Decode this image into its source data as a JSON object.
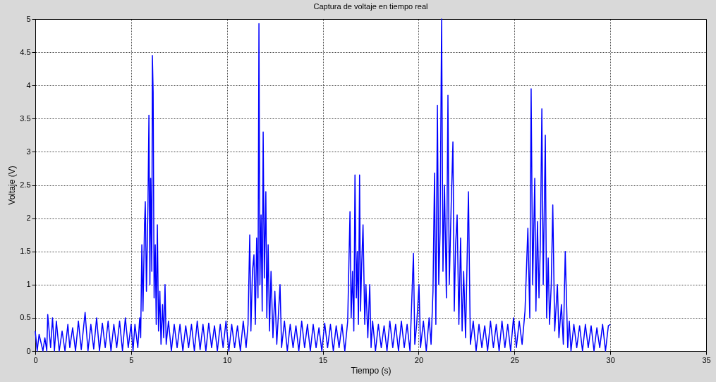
{
  "chart_data": {
    "type": "line",
    "title": "Captura de voltaje en tiempo real",
    "xlabel": "Tiempo (s)",
    "ylabel": "Voltaje (V)",
    "xlim": [
      0,
      35
    ],
    "xticks": [
      0,
      5,
      10,
      15,
      20,
      25,
      30,
      35
    ],
    "ylim": [
      0,
      5
    ],
    "yticks": [
      0,
      0.5,
      1,
      1.5,
      2,
      2.5,
      3,
      3.5,
      4,
      4.5,
      5
    ],
    "grid": true,
    "line_style": "solid",
    "series": [
      {
        "color": "#0000ff",
        "x": [
          0,
          0.1,
          0.2,
          0.4,
          0.5,
          0.6,
          0.65,
          0.8,
          0.9,
          1.0,
          1.1,
          1.25,
          1.4,
          1.55,
          1.7,
          1.8,
          1.95,
          2.1,
          2.25,
          2.4,
          2.6,
          2.75,
          2.9,
          3.05,
          3.2,
          3.35,
          3.5,
          3.65,
          3.8,
          3.95,
          4.1,
          4.25,
          4.4,
          4.55,
          4.7,
          4.85,
          5.0,
          5.1,
          5.2,
          5.35,
          5.45,
          5.5,
          5.56,
          5.62,
          5.7,
          5.74,
          5.8,
          5.88,
          5.93,
          5.98,
          6.02,
          6.08,
          6.11,
          6.15,
          6.2,
          6.26,
          6.31,
          6.37,
          6.43,
          6.5,
          6.56,
          6.64,
          6.7,
          6.77,
          6.83,
          6.95,
          7.1,
          7.25,
          7.4,
          7.55,
          7.7,
          7.85,
          8.0,
          8.15,
          8.3,
          8.45,
          8.6,
          8.75,
          8.9,
          9.05,
          9.2,
          9.35,
          9.5,
          9.65,
          9.8,
          9.95,
          10.1,
          10.25,
          10.4,
          10.55,
          10.7,
          10.85,
          11.0,
          11.1,
          11.19,
          11.25,
          11.33,
          11.41,
          11.48,
          11.55,
          11.62,
          11.67,
          11.72,
          11.78,
          11.84,
          11.89,
          11.95,
          12.03,
          12.08,
          12.15,
          12.22,
          12.3,
          12.4,
          12.5,
          12.6,
          12.77,
          12.85,
          13.0,
          13.15,
          13.3,
          13.45,
          13.6,
          13.75,
          13.9,
          14.05,
          14.2,
          14.35,
          14.5,
          14.65,
          14.8,
          14.95,
          15.1,
          15.25,
          15.4,
          15.55,
          15.7,
          15.85,
          16.0,
          16.15,
          16.3,
          16.42,
          16.48,
          16.55,
          16.62,
          16.68,
          16.75,
          16.8,
          16.86,
          16.92,
          16.97,
          17.03,
          17.1,
          17.19,
          17.25,
          17.35,
          17.45,
          17.52,
          17.6,
          17.75,
          17.9,
          18.05,
          18.2,
          18.35,
          18.5,
          18.65,
          18.8,
          18.95,
          19.1,
          19.25,
          19.4,
          19.55,
          19.73,
          19.8,
          19.9,
          20.02,
          20.1,
          20.25,
          20.4,
          20.55,
          20.65,
          20.75,
          20.83,
          20.9,
          20.98,
          21.05,
          21.12,
          21.2,
          21.27,
          21.35,
          21.45,
          21.53,
          21.6,
          21.7,
          21.79,
          21.86,
          21.93,
          22.01,
          22.1,
          22.19,
          22.27,
          22.35,
          22.45,
          22.6,
          22.7,
          22.85,
          23.0,
          23.15,
          23.3,
          23.45,
          23.6,
          23.75,
          23.9,
          24.05,
          24.2,
          24.35,
          24.5,
          24.65,
          24.8,
          24.95,
          25.1,
          25.25,
          25.4,
          25.55,
          25.7,
          25.8,
          25.87,
          25.95,
          26.06,
          26.12,
          26.2,
          26.28,
          26.35,
          26.43,
          26.5,
          26.61,
          26.68,
          26.76,
          26.83,
          26.92,
          27.0,
          27.1,
          27.24,
          27.32,
          27.45,
          27.55,
          27.65,
          27.78,
          27.86,
          27.95,
          28.1,
          28.25,
          28.4,
          28.55,
          28.7,
          28.85,
          29.0,
          29.15,
          29.3,
          29.45,
          29.6,
          29.75,
          29.9,
          30.0
        ],
        "values": [
          0.3,
          0,
          0.25,
          0,
          0.2,
          0,
          0.55,
          0.05,
          0.5,
          0,
          0.45,
          0,
          0.3,
          0,
          0.4,
          0.05,
          0.35,
          0,
          0.45,
          0.02,
          0.58,
          0,
          0.4,
          0.03,
          0.5,
          0,
          0.42,
          0.05,
          0.45,
          0,
          0.4,
          0.05,
          0.45,
          0,
          0.5,
          0.05,
          0.4,
          0,
          0.4,
          0.05,
          0.5,
          0.2,
          1.6,
          0.6,
          1.9,
          2.25,
          0.9,
          2.2,
          3.55,
          1.0,
          2.6,
          1.2,
          4.45,
          3.9,
          0.8,
          1.6,
          0.4,
          1.9,
          0.3,
          0.9,
          0.1,
          0.7,
          0.2,
          1.0,
          0.1,
          0.45,
          0,
          0.4,
          0.05,
          0.4,
          0,
          0.38,
          0.05,
          0.4,
          0,
          0.45,
          0.02,
          0.4,
          0,
          0.42,
          0.05,
          0.38,
          0,
          0.4,
          0.05,
          0.45,
          0,
          0.4,
          0.05,
          0.38,
          0,
          0.45,
          0.05,
          0.4,
          1.75,
          0.3,
          1.2,
          1.45,
          0.4,
          1.7,
          0.8,
          4.93,
          1.0,
          2.05,
          0.6,
          3.3,
          1.1,
          2.4,
          0.5,
          1.6,
          0.3,
          1.2,
          0.2,
          0.9,
          0.1,
          1.0,
          0.05,
          0.45,
          0,
          0.4,
          0.05,
          0.38,
          0,
          0.45,
          0.05,
          0.4,
          0,
          0.4,
          0.05,
          0.35,
          0,
          0.42,
          0.05,
          0.4,
          0,
          0.38,
          0.05,
          0.4,
          0,
          0.45,
          2.1,
          0.5,
          1.2,
          0.3,
          2.65,
          0.8,
          1.5,
          0.4,
          2.65,
          0.6,
          1.3,
          1.9,
          0.4,
          1.0,
          0.2,
          1.0,
          0.05,
          0.45,
          0,
          0.4,
          0.05,
          0.38,
          0,
          0.45,
          0.05,
          0.4,
          0,
          0.45,
          0.05,
          0.4,
          0,
          1.47,
          0.1,
          0.4,
          1.0,
          0.05,
          0.45,
          0,
          0.5,
          0.1,
          0.9,
          2.68,
          0.4,
          3.7,
          1.0,
          1.8,
          5.0,
          1.2,
          2.5,
          0.8,
          3.85,
          1.0,
          2.2,
          3.15,
          0.6,
          1.6,
          2.05,
          0.4,
          1.7,
          0.3,
          1.2,
          0.2,
          2.4,
          0.1,
          0.45,
          0,
          0.4,
          0.05,
          0.38,
          0,
          0.45,
          0.05,
          0.4,
          0,
          0.45,
          0.05,
          0.4,
          0,
          0.5,
          0.05,
          0.45,
          0.1,
          0.6,
          1.85,
          0.5,
          3.95,
          1.0,
          2.6,
          0.6,
          1.95,
          0.8,
          1.6,
          3.65,
          1.0,
          3.25,
          0.5,
          1.4,
          0.4,
          1.0,
          2.2,
          0.3,
          1.0,
          0.2,
          0.7,
          0.1,
          1.5,
          0.05,
          0.45,
          0,
          0.4,
          0.05,
          0.38,
          0,
          0.4,
          0.05,
          0.38,
          0,
          0.35,
          0.05,
          0.4,
          0,
          0.38,
          0.4
        ]
      }
    ]
  }
}
